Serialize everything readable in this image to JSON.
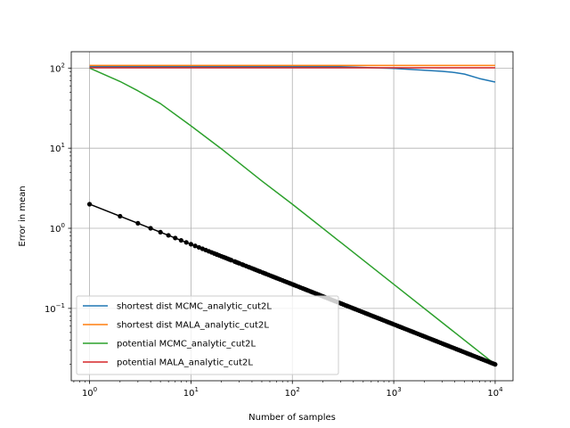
{
  "chart_data": {
    "type": "line",
    "title": "",
    "xlabel": "Number of samples",
    "ylabel": "Error in mean",
    "xscale": "log",
    "yscale": "log",
    "xlim": [
      0.66,
      15000
    ],
    "ylim": [
      0.0125,
      160
    ],
    "grid": true,
    "legend_position": "lower-left",
    "x_tick_labels": [
      {
        "value": 1,
        "base": "10",
        "exp": "0"
      },
      {
        "value": 10,
        "base": "10",
        "exp": "1"
      },
      {
        "value": 100,
        "base": "10",
        "exp": "2"
      },
      {
        "value": 1000,
        "base": "10",
        "exp": "3"
      },
      {
        "value": 10000,
        "base": "10",
        "exp": "4"
      }
    ],
    "y_tick_labels": [
      {
        "value": 0.1,
        "base": "10",
        "exp": "−1"
      },
      {
        "value": 1,
        "base": "10",
        "exp": "0"
      },
      {
        "value": 10,
        "base": "10",
        "exp": "1"
      },
      {
        "value": 100,
        "base": "10",
        "exp": "2"
      }
    ],
    "series": [
      {
        "name": "shortest dist MCMC_analytic_cut2L",
        "color": "#1f77b4",
        "points": [
          [
            1,
            104
          ],
          [
            300,
            104
          ],
          [
            800,
            100
          ],
          [
            1000,
            99
          ],
          [
            2000,
            94
          ],
          [
            3000,
            91
          ],
          [
            4000,
            88
          ],
          [
            5000,
            84
          ],
          [
            7000,
            74
          ],
          [
            10000,
            67
          ]
        ]
      },
      {
        "name": "shortest dist MALA_analytic_cut2L",
        "color": "#ff7f0e",
        "points": [
          [
            1,
            108
          ],
          [
            10000,
            108
          ]
        ]
      },
      {
        "name": "potential MCMC_analytic_cut2L",
        "color": "#2ca02c",
        "points": [
          [
            1,
            100
          ],
          [
            2,
            68
          ],
          [
            3,
            52
          ],
          [
            5,
            36
          ],
          [
            10,
            19
          ],
          [
            20,
            9.8
          ],
          [
            50,
            3.9
          ],
          [
            100,
            2.0
          ],
          [
            1000,
            0.2
          ],
          [
            10000,
            0.02
          ]
        ]
      },
      {
        "name": "potential MALA_analytic_cut2L",
        "color": "#d62728",
        "points": [
          [
            1,
            101
          ],
          [
            10000,
            101
          ]
        ]
      }
    ],
    "reference": {
      "color": "#000000",
      "marker": "dot",
      "formula": "2/sqrt(n)",
      "n_range": [
        1,
        10000
      ]
    }
  }
}
